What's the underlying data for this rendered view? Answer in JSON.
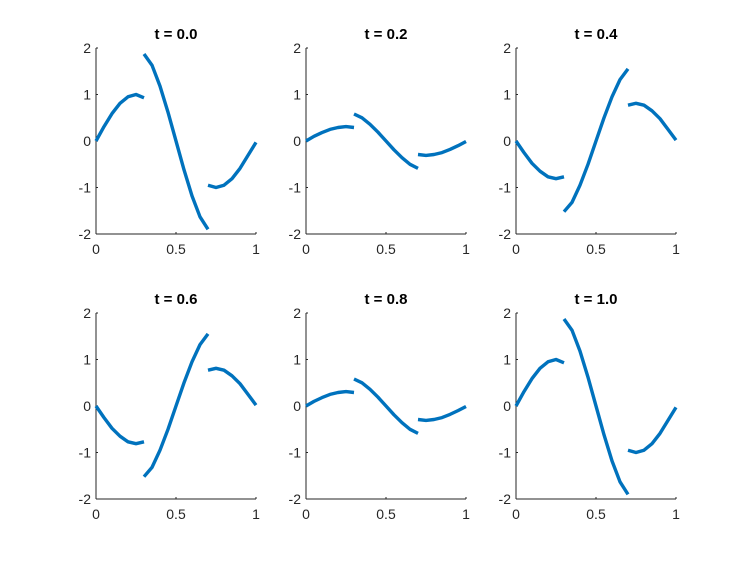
{
  "colors": {
    "line": "#0072BD",
    "axis": "#262626",
    "background": "#ffffff"
  },
  "chart_data": [
    {
      "type": "line",
      "title": "t = 0.0",
      "xlabel": "",
      "ylabel": "",
      "xlim": [
        0,
        1
      ],
      "ylim": [
        -2,
        2
      ],
      "xticks": [
        0,
        0.5,
        1
      ],
      "xtick_labels": [
        "0",
        "0.5",
        "1"
      ],
      "yticks": [
        -2,
        -1,
        0,
        1,
        2
      ],
      "ytick_labels": [
        "-2",
        "-1",
        "0",
        "1",
        "2"
      ],
      "grid": false,
      "legend": "none",
      "series": [
        {
          "x": [
            0,
            0.05,
            0.1,
            0.15,
            0.2,
            0.25,
            0.3
          ],
          "y": [
            0,
            0.31,
            0.59,
            0.81,
            0.95,
            1.0,
            0.93
          ]
        },
        {
          "x": [
            0.3,
            0.35,
            0.4,
            0.45,
            0.5,
            0.55,
            0.6,
            0.65,
            0.7
          ],
          "y": [
            1.87,
            1.63,
            1.18,
            0.62,
            0.0,
            -0.62,
            -1.18,
            -1.63,
            -1.9
          ]
        },
        {
          "x": [
            0.7,
            0.75,
            0.8,
            0.85,
            0.9,
            0.95,
            1.0
          ],
          "y": [
            -0.95,
            -1.0,
            -0.95,
            -0.81,
            -0.59,
            -0.31,
            -0.03
          ]
        }
      ]
    },
    {
      "type": "line",
      "title": "t = 0.2",
      "xlabel": "",
      "ylabel": "",
      "xlim": [
        0,
        1
      ],
      "ylim": [
        -2,
        2
      ],
      "xticks": [
        0,
        0.5,
        1
      ],
      "xtick_labels": [
        "0",
        "0.5",
        "1"
      ],
      "yticks": [
        -2,
        -1,
        0,
        1,
        2
      ],
      "ytick_labels": [
        "-2",
        "-1",
        "0",
        "1",
        "2"
      ],
      "grid": false,
      "legend": "none",
      "series": [
        {
          "x": [
            0,
            0.05,
            0.1,
            0.15,
            0.2,
            0.25,
            0.3
          ],
          "y": [
            0,
            0.1,
            0.18,
            0.25,
            0.29,
            0.31,
            0.29
          ]
        },
        {
          "x": [
            0.3,
            0.35,
            0.4,
            0.45,
            0.5,
            0.55,
            0.6,
            0.65,
            0.7
          ],
          "y": [
            0.58,
            0.5,
            0.36,
            0.19,
            0.0,
            -0.19,
            -0.36,
            -0.5,
            -0.59
          ]
        },
        {
          "x": [
            0.7,
            0.75,
            0.8,
            0.85,
            0.9,
            0.95,
            1.0
          ],
          "y": [
            -0.29,
            -0.31,
            -0.29,
            -0.25,
            -0.18,
            -0.1,
            -0.01
          ]
        }
      ]
    },
    {
      "type": "line",
      "title": "t = 0.4",
      "xlabel": "",
      "ylabel": "",
      "xlim": [
        0,
        1
      ],
      "ylim": [
        -2,
        2
      ],
      "xticks": [
        0,
        0.5,
        1
      ],
      "xtick_labels": [
        "0",
        "0.5",
        "1"
      ],
      "yticks": [
        -2,
        -1,
        0,
        1,
        2
      ],
      "ytick_labels": [
        "-2",
        "-1",
        "0",
        "1",
        "2"
      ],
      "grid": false,
      "legend": "none",
      "series": [
        {
          "x": [
            0,
            0.05,
            0.1,
            0.15,
            0.2,
            0.25,
            0.3
          ],
          "y": [
            0,
            -0.25,
            -0.48,
            -0.65,
            -0.77,
            -0.81,
            -0.77
          ]
        },
        {
          "x": [
            0.3,
            0.35,
            0.4,
            0.45,
            0.5,
            0.55,
            0.6,
            0.65,
            0.7
          ],
          "y": [
            -1.52,
            -1.32,
            -0.95,
            -0.5,
            0.0,
            0.5,
            0.95,
            1.32,
            1.55
          ]
        },
        {
          "x": [
            0.7,
            0.75,
            0.8,
            0.85,
            0.9,
            0.95,
            1.0
          ],
          "y": [
            0.77,
            0.81,
            0.77,
            0.65,
            0.48,
            0.25,
            0.02
          ]
        }
      ]
    },
    {
      "type": "line",
      "title": "t = 0.6",
      "xlabel": "",
      "ylabel": "",
      "xlim": [
        0,
        1
      ],
      "ylim": [
        -2,
        2
      ],
      "xticks": [
        0,
        0.5,
        1
      ],
      "xtick_labels": [
        "0",
        "0.5",
        "1"
      ],
      "yticks": [
        -2,
        -1,
        0,
        1,
        2
      ],
      "ytick_labels": [
        "-2",
        "-1",
        "0",
        "1",
        "2"
      ],
      "grid": false,
      "legend": "none",
      "series": [
        {
          "x": [
            0,
            0.05,
            0.1,
            0.15,
            0.2,
            0.25,
            0.3
          ],
          "y": [
            0,
            -0.25,
            -0.48,
            -0.65,
            -0.77,
            -0.81,
            -0.77
          ]
        },
        {
          "x": [
            0.3,
            0.35,
            0.4,
            0.45,
            0.5,
            0.55,
            0.6,
            0.65,
            0.7
          ],
          "y": [
            -1.52,
            -1.32,
            -0.95,
            -0.5,
            0.0,
            0.5,
            0.95,
            1.32,
            1.55
          ]
        },
        {
          "x": [
            0.7,
            0.75,
            0.8,
            0.85,
            0.9,
            0.95,
            1.0
          ],
          "y": [
            0.77,
            0.81,
            0.77,
            0.65,
            0.48,
            0.25,
            0.02
          ]
        }
      ]
    },
    {
      "type": "line",
      "title": "t = 0.8",
      "xlabel": "",
      "ylabel": "",
      "xlim": [
        0,
        1
      ],
      "ylim": [
        -2,
        2
      ],
      "xticks": [
        0,
        0.5,
        1
      ],
      "xtick_labels": [
        "0",
        "0.5",
        "1"
      ],
      "yticks": [
        -2,
        -1,
        0,
        1,
        2
      ],
      "ytick_labels": [
        "-2",
        "-1",
        "0",
        "1",
        "2"
      ],
      "grid": false,
      "legend": "none",
      "series": [
        {
          "x": [
            0,
            0.05,
            0.1,
            0.15,
            0.2,
            0.25,
            0.3
          ],
          "y": [
            0,
            0.1,
            0.18,
            0.25,
            0.29,
            0.31,
            0.29
          ]
        },
        {
          "x": [
            0.3,
            0.35,
            0.4,
            0.45,
            0.5,
            0.55,
            0.6,
            0.65,
            0.7
          ],
          "y": [
            0.58,
            0.5,
            0.36,
            0.19,
            0.0,
            -0.19,
            -0.36,
            -0.5,
            -0.59
          ]
        },
        {
          "x": [
            0.7,
            0.75,
            0.8,
            0.85,
            0.9,
            0.95,
            1.0
          ],
          "y": [
            -0.29,
            -0.31,
            -0.29,
            -0.25,
            -0.18,
            -0.1,
            -0.01
          ]
        }
      ]
    },
    {
      "type": "line",
      "title": "t = 1.0",
      "xlabel": "",
      "ylabel": "",
      "xlim": [
        0,
        1
      ],
      "ylim": [
        -2,
        2
      ],
      "xticks": [
        0,
        0.5,
        1
      ],
      "xtick_labels": [
        "0",
        "0.5",
        "1"
      ],
      "yticks": [
        -2,
        -1,
        0,
        1,
        2
      ],
      "ytick_labels": [
        "-2",
        "-1",
        "0",
        "1",
        "2"
      ],
      "grid": false,
      "legend": "none",
      "series": [
        {
          "x": [
            0,
            0.05,
            0.1,
            0.15,
            0.2,
            0.25,
            0.3
          ],
          "y": [
            0,
            0.31,
            0.59,
            0.81,
            0.95,
            1.0,
            0.93
          ]
        },
        {
          "x": [
            0.3,
            0.35,
            0.4,
            0.45,
            0.5,
            0.55,
            0.6,
            0.65,
            0.7
          ],
          "y": [
            1.87,
            1.63,
            1.18,
            0.62,
            0.0,
            -0.62,
            -1.18,
            -1.63,
            -1.9
          ]
        },
        {
          "x": [
            0.7,
            0.75,
            0.8,
            0.85,
            0.9,
            0.95,
            1.0
          ],
          "y": [
            -0.95,
            -1.0,
            -0.95,
            -0.81,
            -0.59,
            -0.31,
            -0.03
          ]
        }
      ]
    }
  ]
}
